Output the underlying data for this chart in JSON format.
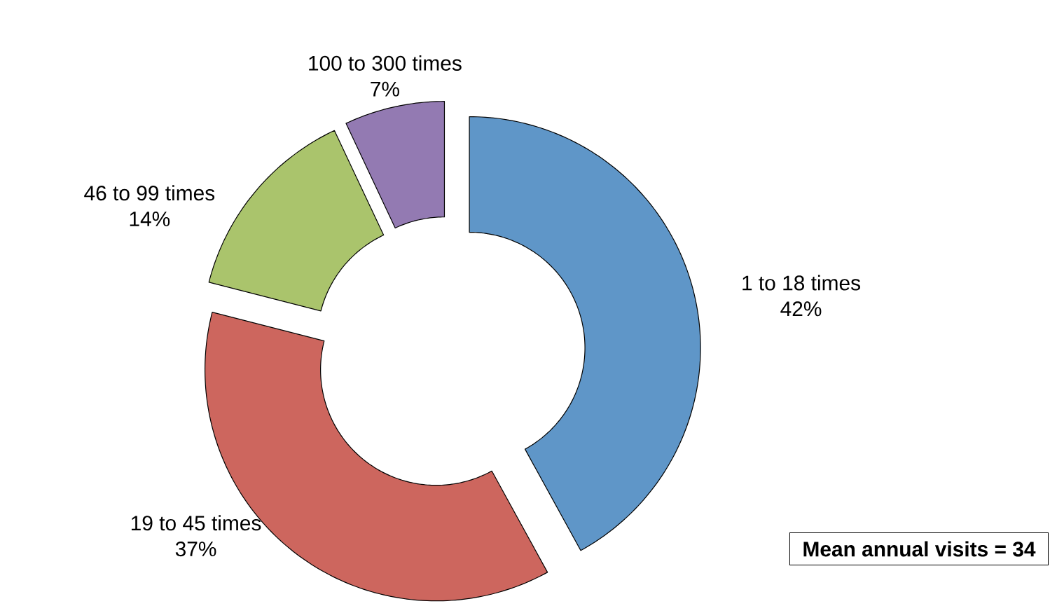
{
  "chart_data": {
    "type": "donut",
    "categories": [
      "1 to 18 times",
      "19  to 45 times",
      "46 to 99 times",
      "100 to 300 times"
    ],
    "values": [
      42,
      37,
      14,
      7
    ],
    "value_labels": [
      "42%",
      "37%",
      "14%",
      "7%"
    ],
    "colors": [
      "#5f96c8",
      "#cd665e",
      "#aac46c",
      "#937ab2"
    ],
    "annotations": [
      "Mean annual visits = 34"
    ]
  }
}
